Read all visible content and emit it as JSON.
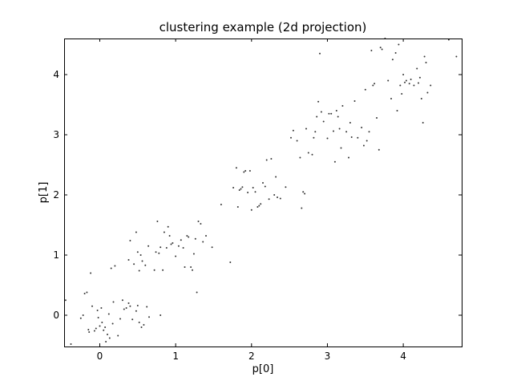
{
  "chart_data": {
    "type": "scatter",
    "title": "clustering example (2d projection)",
    "xlabel": "p[0]",
    "ylabel": "p[1]",
    "xlim": [
      -0.47,
      4.77
    ],
    "ylim": [
      -0.52,
      4.6
    ],
    "xticks": [
      0,
      1,
      2,
      3,
      4
    ],
    "yticks": [
      0,
      1,
      2,
      3,
      4
    ],
    "grid": false,
    "marker_color": "#333333",
    "series": [
      {
        "points": [
          [
            -0.45,
            0.25
          ],
          [
            -0.38,
            -0.48
          ],
          [
            -0.25,
            -0.05
          ],
          [
            -0.22,
            0.0
          ],
          [
            -0.2,
            0.36
          ],
          [
            -0.17,
            0.38
          ],
          [
            -0.15,
            -0.24
          ],
          [
            -0.14,
            -0.28
          ],
          [
            -0.12,
            0.7
          ],
          [
            -0.1,
            0.15
          ],
          [
            -0.07,
            -0.26
          ],
          [
            -0.05,
            -0.22
          ],
          [
            -0.03,
            0.08
          ],
          [
            -0.02,
            -0.04
          ],
          [
            0.0,
            -0.18
          ],
          [
            0.02,
            0.12
          ],
          [
            0.03,
            -0.12
          ],
          [
            0.05,
            -0.25
          ],
          [
            0.07,
            -0.2
          ],
          [
            0.08,
            -0.44
          ],
          [
            0.1,
            -0.32
          ],
          [
            0.12,
            0.02
          ],
          [
            0.13,
            -0.38
          ],
          [
            0.15,
            0.78
          ],
          [
            0.17,
            -0.14
          ],
          [
            0.18,
            0.22
          ],
          [
            0.2,
            0.82
          ],
          [
            0.24,
            -0.34
          ],
          [
            0.27,
            -0.06
          ],
          [
            0.3,
            0.25
          ],
          [
            0.32,
            0.1
          ],
          [
            0.35,
            0.12
          ],
          [
            0.38,
            0.2
          ],
          [
            0.4,
            0.15
          ],
          [
            0.43,
            -0.07
          ],
          [
            0.48,
            0.07
          ],
          [
            0.5,
            0.16
          ],
          [
            0.52,
            -0.12
          ],
          [
            0.55,
            -0.2
          ],
          [
            0.58,
            -0.16
          ],
          [
            0.62,
            0.14
          ],
          [
            0.65,
            -0.03
          ],
          [
            0.8,
            0.0
          ],
          [
            0.38,
            0.92
          ],
          [
            0.4,
            1.24
          ],
          [
            0.45,
            0.85
          ],
          [
            0.48,
            1.38
          ],
          [
            0.5,
            1.05
          ],
          [
            0.52,
            0.74
          ],
          [
            0.54,
            1.0
          ],
          [
            0.56,
            0.9
          ],
          [
            0.6,
            0.83
          ],
          [
            0.64,
            1.15
          ],
          [
            0.72,
            0.75
          ],
          [
            0.74,
            1.05
          ],
          [
            0.76,
            1.56
          ],
          [
            0.78,
            1.03
          ],
          [
            0.8,
            1.13
          ],
          [
            0.83,
            0.75
          ],
          [
            0.85,
            1.38
          ],
          [
            0.88,
            1.12
          ],
          [
            0.9,
            1.47
          ],
          [
            0.92,
            1.32
          ],
          [
            0.94,
            1.18
          ],
          [
            0.96,
            1.2
          ],
          [
            1.0,
            0.98
          ],
          [
            1.04,
            1.15
          ],
          [
            1.07,
            1.25
          ],
          [
            1.1,
            1.12
          ],
          [
            1.12,
            0.8
          ],
          [
            1.15,
            1.32
          ],
          [
            1.17,
            1.3
          ],
          [
            1.2,
            0.8
          ],
          [
            1.22,
            0.75
          ],
          [
            1.24,
            1.02
          ],
          [
            1.26,
            1.27
          ],
          [
            1.28,
            0.38
          ],
          [
            1.3,
            1.56
          ],
          [
            1.33,
            1.52
          ],
          [
            1.36,
            1.22
          ],
          [
            1.4,
            1.32
          ],
          [
            1.48,
            1.13
          ],
          [
            1.6,
            1.84
          ],
          [
            1.72,
            0.88
          ],
          [
            1.76,
            2.12
          ],
          [
            1.8,
            2.45
          ],
          [
            1.82,
            1.8
          ],
          [
            1.84,
            2.08
          ],
          [
            1.86,
            2.1
          ],
          [
            1.88,
            2.13
          ],
          [
            1.9,
            2.38
          ],
          [
            1.92,
            2.4
          ],
          [
            1.95,
            2.04
          ],
          [
            1.98,
            2.4
          ],
          [
            2.0,
            1.75
          ],
          [
            2.02,
            2.12
          ],
          [
            2.05,
            2.05
          ],
          [
            2.08,
            1.8
          ],
          [
            2.1,
            1.82
          ],
          [
            2.12,
            1.85
          ],
          [
            2.15,
            2.2
          ],
          [
            2.18,
            2.14
          ],
          [
            2.2,
            2.58
          ],
          [
            2.23,
            1.93
          ],
          [
            2.26,
            2.6
          ],
          [
            2.3,
            2.0
          ],
          [
            2.32,
            2.3
          ],
          [
            2.34,
            1.96
          ],
          [
            2.38,
            1.94
          ],
          [
            2.45,
            2.13
          ],
          [
            2.52,
            2.95
          ],
          [
            2.55,
            3.07
          ],
          [
            2.6,
            2.9
          ],
          [
            2.64,
            2.62
          ],
          [
            2.66,
            1.78
          ],
          [
            2.68,
            2.05
          ],
          [
            2.7,
            2.02
          ],
          [
            2.72,
            3.1
          ],
          [
            2.75,
            2.7
          ],
          [
            2.8,
            2.67
          ],
          [
            2.82,
            2.95
          ],
          [
            2.84,
            3.05
          ],
          [
            2.86,
            3.3
          ],
          [
            2.88,
            3.55
          ],
          [
            2.9,
            4.35
          ],
          [
            2.92,
            3.38
          ],
          [
            2.95,
            3.22
          ],
          [
            3.0,
            2.94
          ],
          [
            3.02,
            3.35
          ],
          [
            3.05,
            3.35
          ],
          [
            3.08,
            3.06
          ],
          [
            3.1,
            2.55
          ],
          [
            3.12,
            3.4
          ],
          [
            3.14,
            3.3
          ],
          [
            3.16,
            3.1
          ],
          [
            3.18,
            2.78
          ],
          [
            3.2,
            3.48
          ],
          [
            3.25,
            3.05
          ],
          [
            3.28,
            2.62
          ],
          [
            3.3,
            3.2
          ],
          [
            3.32,
            2.96
          ],
          [
            3.36,
            3.56
          ],
          [
            3.4,
            2.95
          ],
          [
            3.45,
            3.12
          ],
          [
            3.48,
            2.82
          ],
          [
            3.5,
            3.75
          ],
          [
            3.52,
            2.9
          ],
          [
            3.55,
            3.05
          ],
          [
            3.58,
            4.4
          ],
          [
            3.6,
            3.82
          ],
          [
            3.62,
            3.85
          ],
          [
            3.65,
            3.28
          ],
          [
            3.68,
            2.75
          ],
          [
            3.7,
            4.45
          ],
          [
            3.72,
            4.42
          ],
          [
            3.76,
            4.6
          ],
          [
            3.8,
            3.9
          ],
          [
            3.84,
            3.6
          ],
          [
            3.86,
            4.25
          ],
          [
            3.9,
            4.36
          ],
          [
            3.92,
            3.4
          ],
          [
            3.94,
            4.5
          ],
          [
            3.96,
            3.82
          ],
          [
            3.98,
            3.68
          ],
          [
            4.0,
            4.0
          ],
          [
            4.02,
            3.87
          ],
          [
            4.04,
            3.9
          ],
          [
            4.08,
            3.85
          ],
          [
            4.1,
            3.92
          ],
          [
            4.14,
            3.82
          ],
          [
            4.18,
            4.1
          ],
          [
            4.2,
            3.86
          ],
          [
            4.22,
            3.95
          ],
          [
            4.24,
            3.6
          ],
          [
            4.26,
            3.2
          ],
          [
            4.28,
            4.3
          ],
          [
            4.3,
            4.2
          ],
          [
            4.32,
            3.7
          ],
          [
            4.36,
            3.82
          ],
          [
            4.6,
            4.58
          ],
          [
            4.7,
            4.3
          ]
        ]
      }
    ]
  }
}
